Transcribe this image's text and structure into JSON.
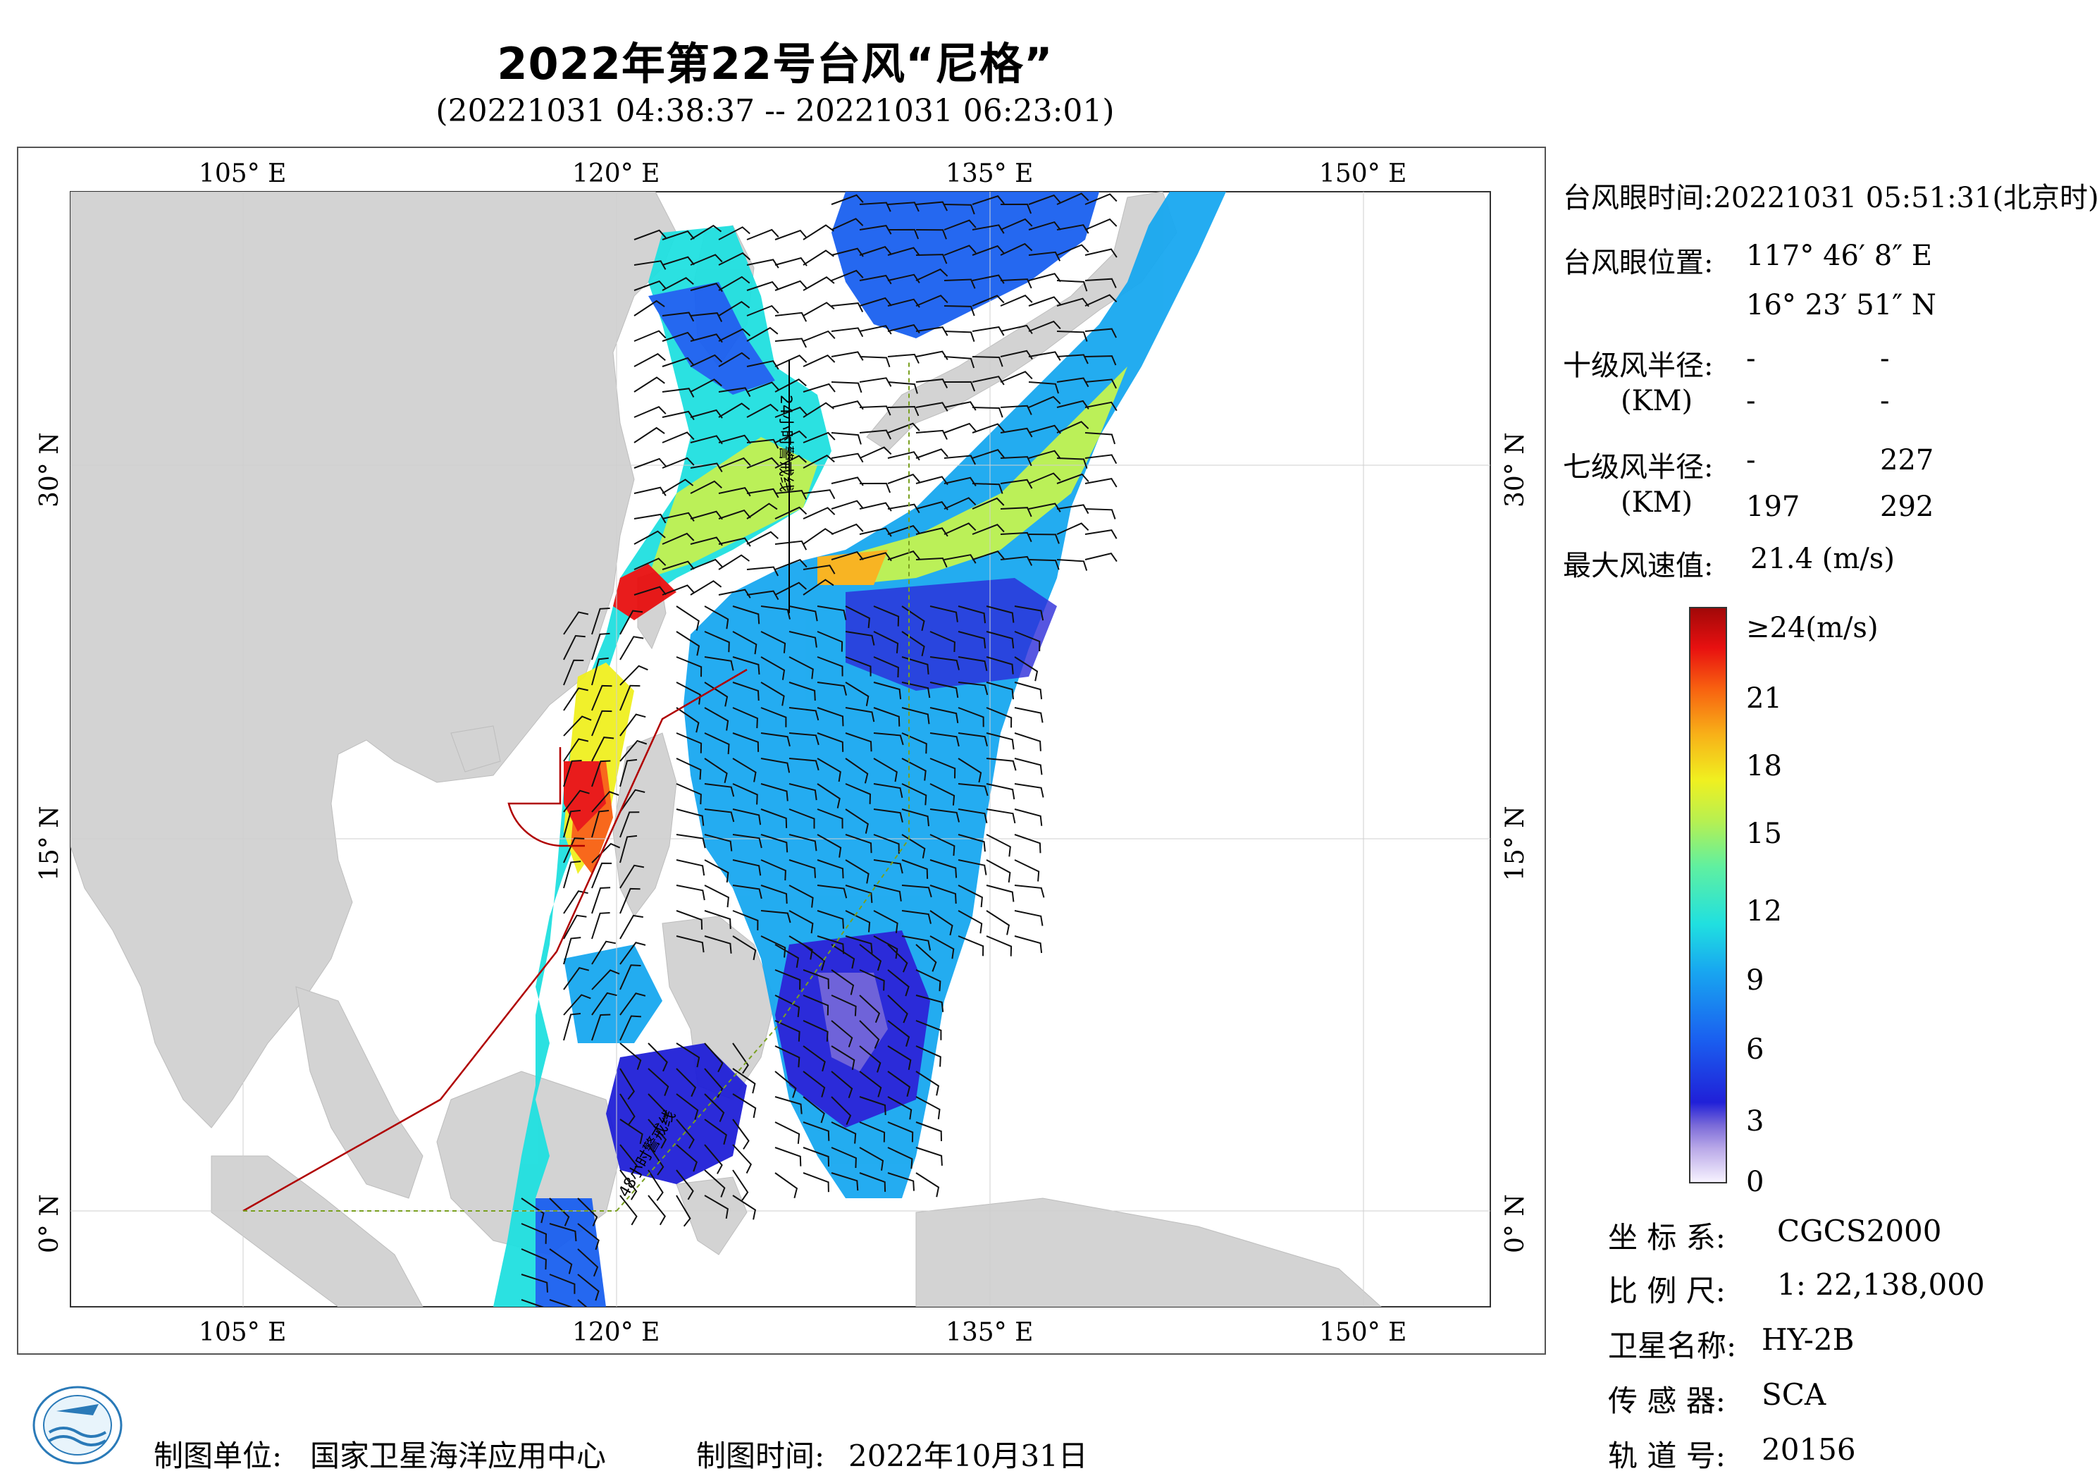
{
  "title": "2022年第22号台风“尼格”",
  "subtitle": "(20221031 04:38:37 -- 20221031 06:23:01)",
  "axes": {
    "top_labels": [
      "105° E",
      "120° E",
      "135° E",
      "150° E"
    ],
    "bottom_labels": [
      "105° E",
      "120° E",
      "135° E",
      "150° E"
    ],
    "left_labels": [
      "30° N",
      "15° N",
      "0° N"
    ],
    "right_labels": [
      "30° N",
      "15° N",
      "0° N"
    ]
  },
  "map_annotations": {
    "line_24h": "24小时警戒线",
    "line_48h": "48小时警戒线"
  },
  "info": {
    "eye_time_label": "台风眼时间:",
    "eye_time_value": "20221031 05:51:31(北京时)",
    "eye_pos_label": "台风眼位置:",
    "eye_lon": "117° 46′ 8″ E",
    "eye_lat": "16° 23′ 51″ N",
    "r10_label": "十级风半径:",
    "r10_unit": "(KM)",
    "r10_values": [
      "-",
      "-",
      "-",
      "-"
    ],
    "r7_label": "七级风半径:",
    "r7_unit": "(KM)",
    "r7_values": [
      "-",
      "227",
      "197",
      "292"
    ],
    "max_wind_label": "最大风速值:",
    "max_wind_value": "21.4  (m/s)"
  },
  "colorbar": {
    "labels": [
      "≥24(m/s)",
      "21",
      "18",
      "15",
      "12",
      "9",
      "6",
      "3",
      "0"
    ],
    "colors": [
      "#f8f4ff",
      "#b9a8e8",
      "#7a6ad8",
      "#2020d8",
      "#1a60f0",
      "#18a8f0",
      "#20e0e0",
      "#60f0a0",
      "#b8f050",
      "#f0f020",
      "#f8b018",
      "#f86010",
      "#e81010",
      "#a00808"
    ]
  },
  "meta": {
    "coord_label": "坐 标 系:",
    "coord_value": "CGCS2000",
    "scale_label": "比 例 尺:",
    "scale_value": "1: 22,138,000",
    "satellite_label": "卫星名称:",
    "satellite_value": "HY-2B",
    "sensor_label": "传 感 器:",
    "sensor_value": "SCA",
    "orbit_label": "轨 道 号:",
    "orbit_value": "20156"
  },
  "footer": {
    "unit_label": "制图单位:",
    "unit_value": "国家卫星海洋应用中心",
    "time_label": "制图时间:",
    "time_value": "2022年10月31日"
  }
}
